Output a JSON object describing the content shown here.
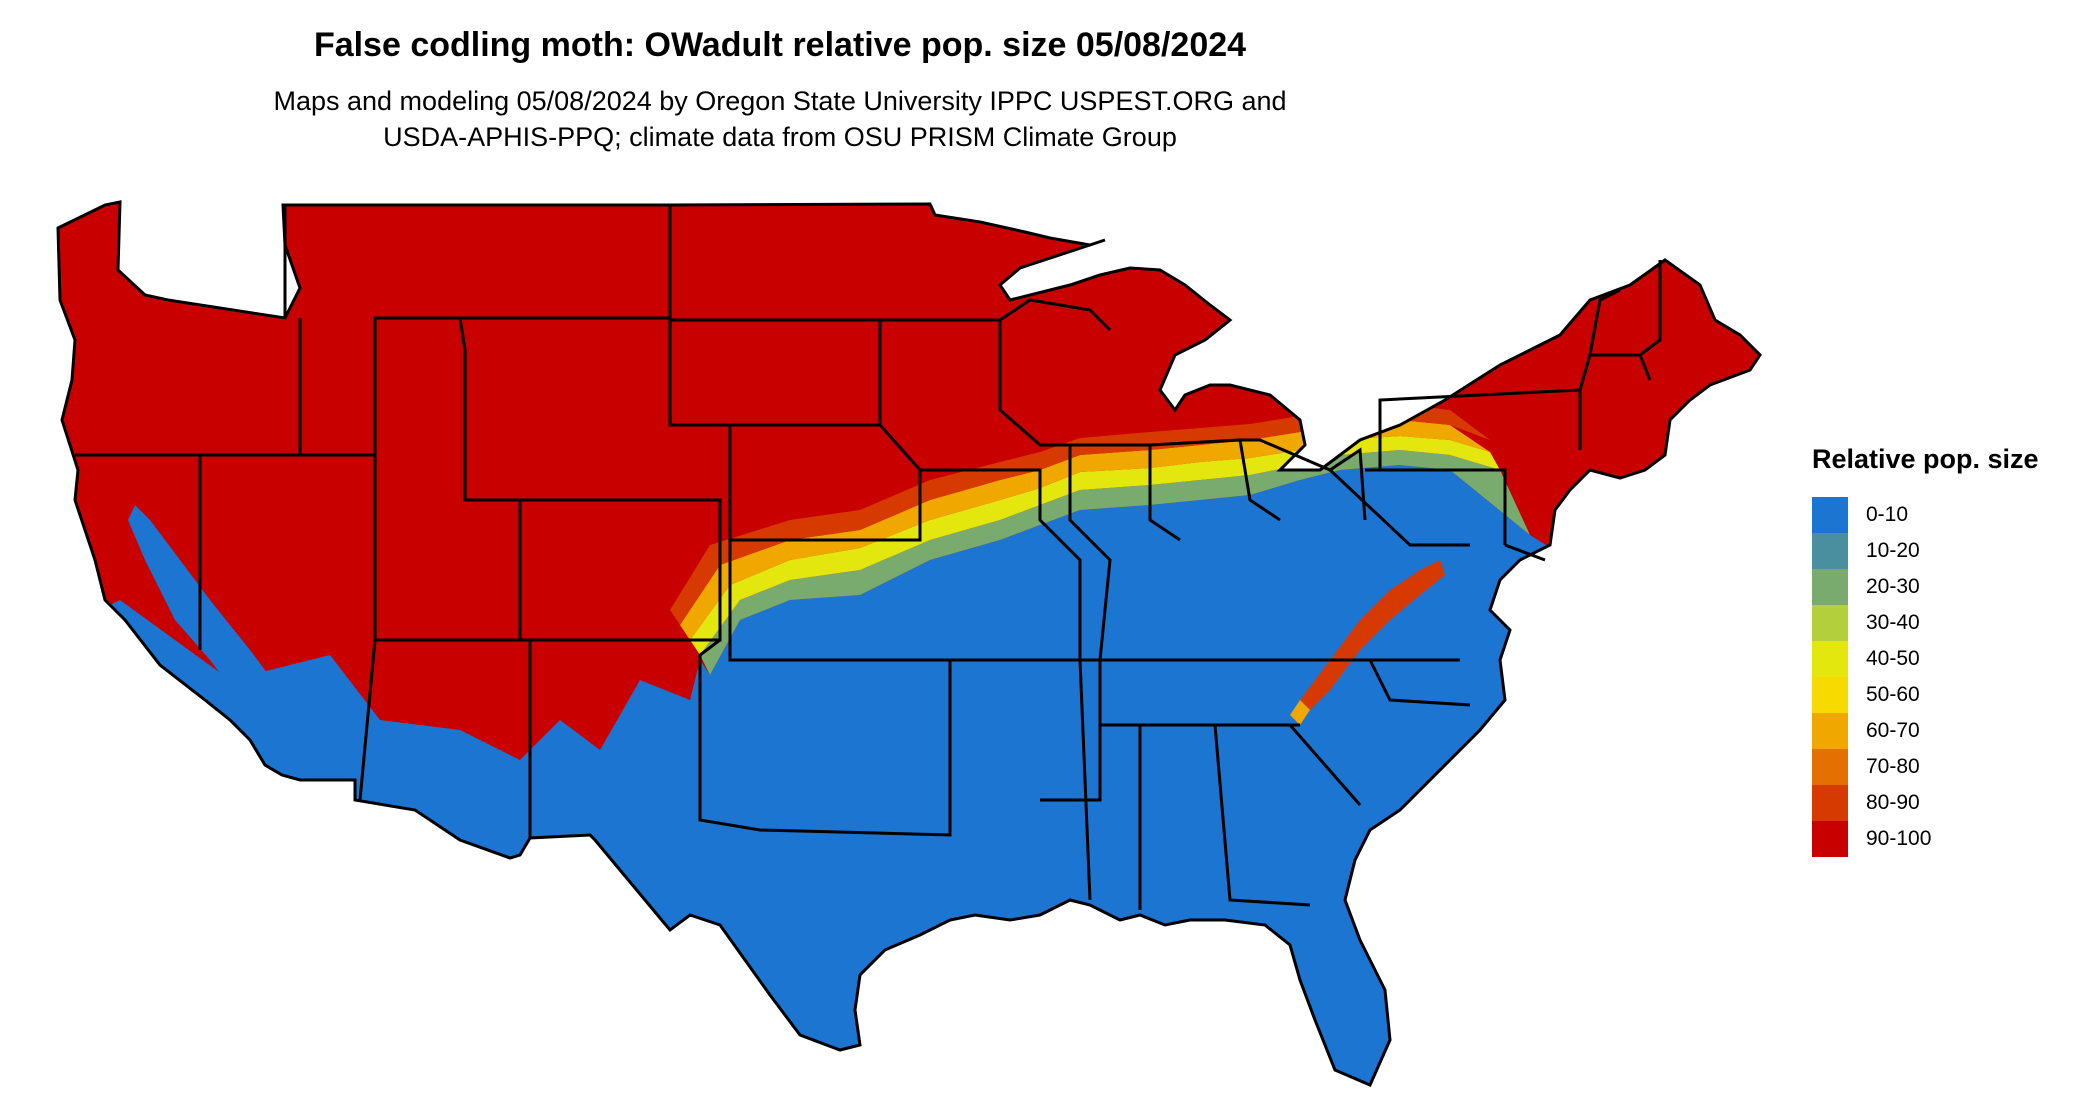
{
  "title": "False codling moth: OWadult relative pop. size 05/08/2024",
  "subtitle_line1": "Maps and modeling 05/08/2024 by Oregon State University IPPC USPEST.ORG and",
  "subtitle_line2": "USDA-APHIS-PPQ; climate data from OSU PRISM Climate Group",
  "legend": {
    "title": "Relative pop. size",
    "items": [
      {
        "label": "0-10",
        "color": "#1c75d0"
      },
      {
        "label": "10-20",
        "color": "#4a8fa0"
      },
      {
        "label": "20-30",
        "color": "#7aab6e"
      },
      {
        "label": "30-40",
        "color": "#b3cf3c"
      },
      {
        "label": "40-50",
        "color": "#e3e70e"
      },
      {
        "label": "50-60",
        "color": "#f7db00"
      },
      {
        "label": "60-70",
        "color": "#f0a800"
      },
      {
        "label": "70-80",
        "color": "#e37000"
      },
      {
        "label": "80-90",
        "color": "#d73a00"
      },
      {
        "label": "90-100",
        "color": "#c80000"
      }
    ]
  },
  "map": {
    "region": "Contiguous United States",
    "boundary_color": "#000000"
  }
}
